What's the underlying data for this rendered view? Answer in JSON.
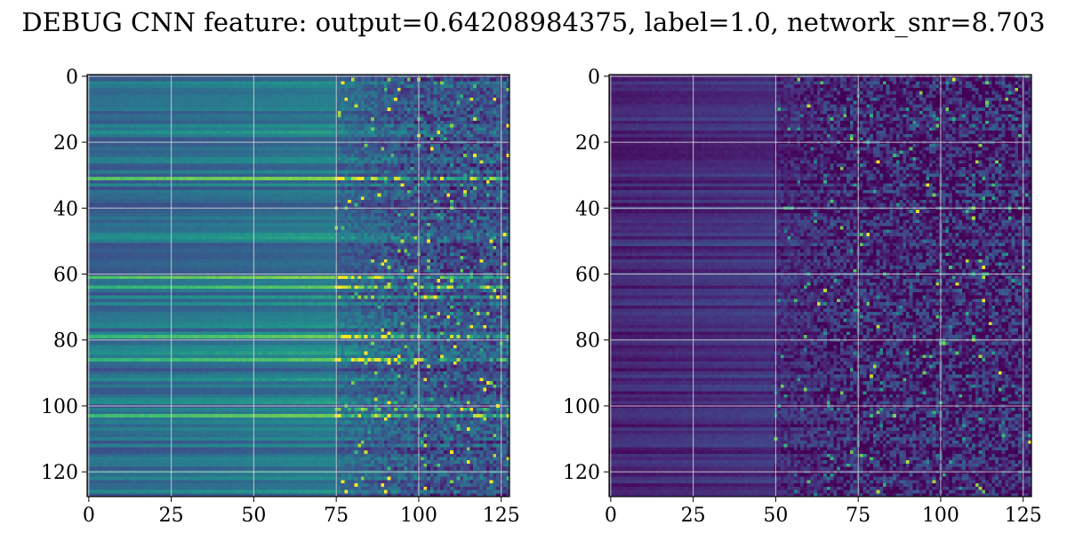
{
  "title": "DEBUG CNN feature: output=0.64208984375, label=1.0, network_snr=8.703",
  "chart_data": [
    {
      "type": "heatmap",
      "title": "",
      "xlabel": "",
      "ylabel": "",
      "rows": 128,
      "cols": 128,
      "xlim": [
        0,
        128
      ],
      "ylim": [
        128,
        0
      ],
      "xticks": [
        0,
        25,
        50,
        75,
        100,
        125
      ],
      "yticks": [
        0,
        20,
        40,
        60,
        80,
        100,
        120
      ],
      "grid": true,
      "colormap": "viridis",
      "description_pattern": {
        "stable_region_cols": [
          0,
          75
        ],
        "noisy_region_cols": [
          75,
          128
        ],
        "bright_rows": [
          31,
          61,
          64,
          67,
          79,
          86,
          101,
          103
        ],
        "base_level": 0.45,
        "noise_level": 0.25
      }
    },
    {
      "type": "heatmap",
      "title": "",
      "xlabel": "",
      "ylabel": "",
      "rows": 128,
      "cols": 128,
      "xlim": [
        0,
        128
      ],
      "ylim": [
        128,
        0
      ],
      "xticks": [
        0,
        25,
        50,
        75,
        100,
        125
      ],
      "yticks": [
        0,
        20,
        40,
        60,
        80,
        100,
        120
      ],
      "grid": true,
      "colormap": "viridis",
      "description_pattern": {
        "stable_region_cols": [
          0,
          50
        ],
        "noisy_region_cols": [
          50,
          128
        ],
        "bright_rows": [
          35,
          51,
          95,
          115
        ],
        "base_level": 0.12,
        "noise_level": 0.3
      }
    }
  ]
}
